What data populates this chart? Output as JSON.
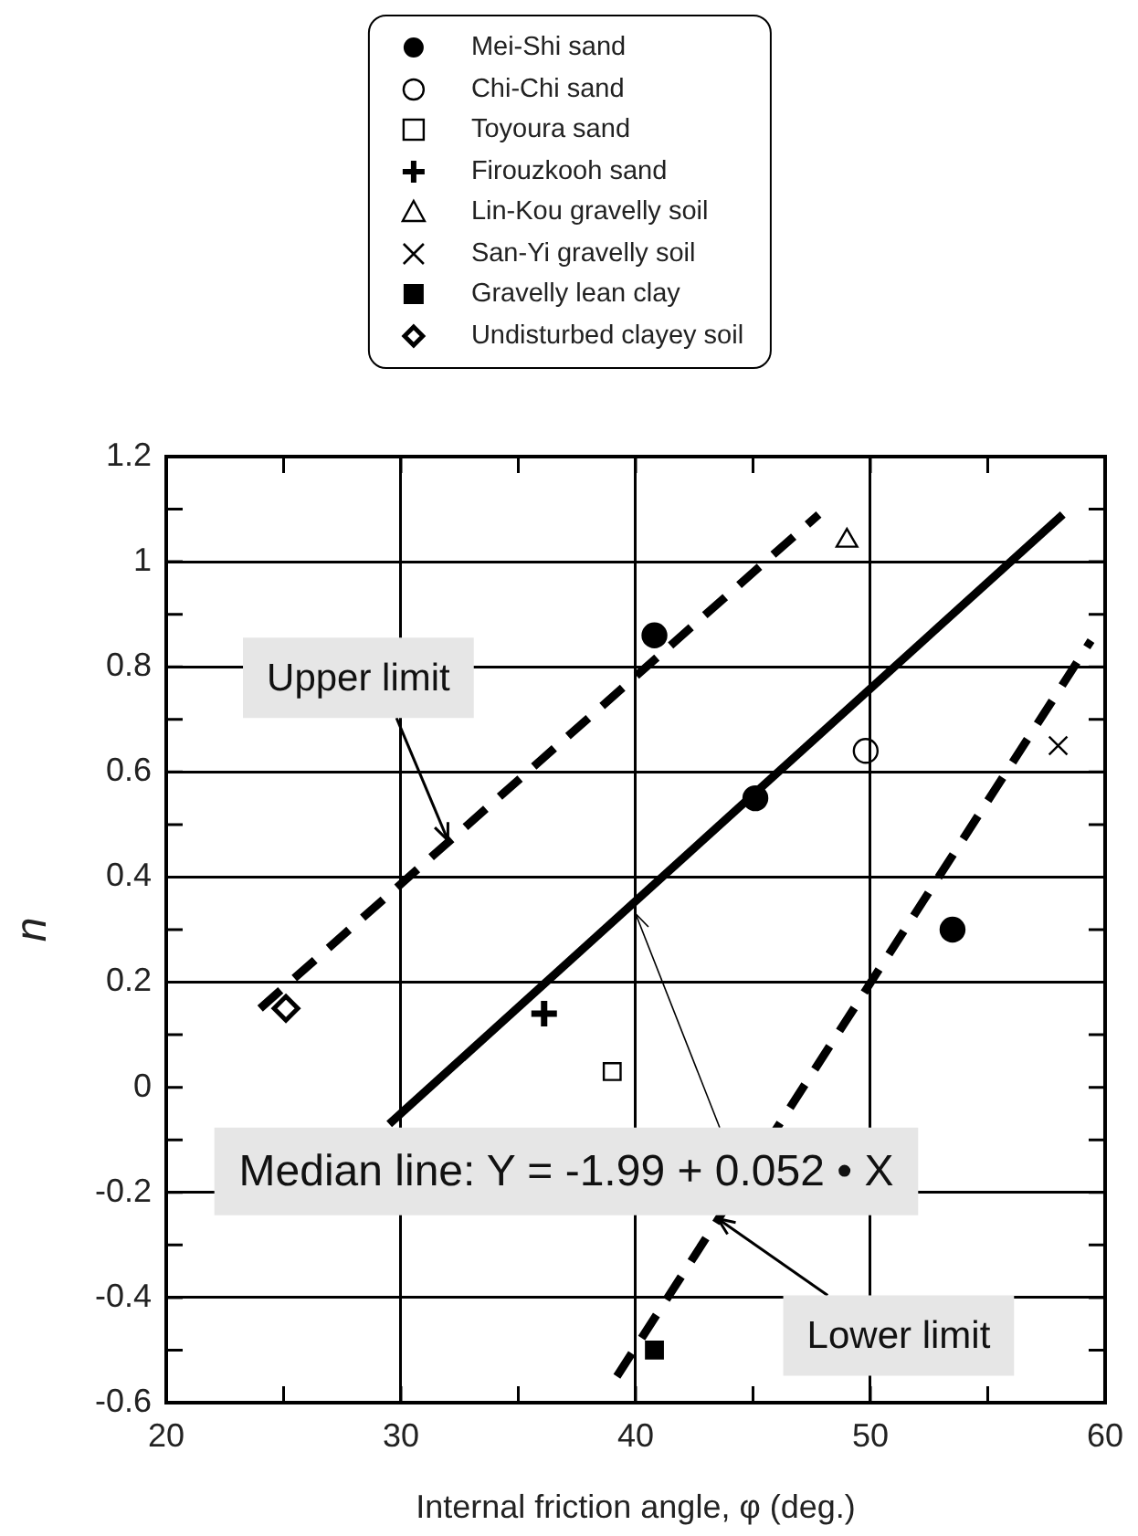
{
  "chart_data": {
    "type": "scatter",
    "xlabel": "Internal friction angle, φ (deg.)",
    "ylabel": "n",
    "xlim": [
      20,
      60
    ],
    "xticks": [
      20,
      {
        "value": 25,
        "label": null
      },
      30,
      {
        "value": 35,
        "label": null
      },
      40,
      {
        "value": 45,
        "label": null
      },
      50,
      {
        "value": 55,
        "label": null
      },
      60
    ],
    "ylim": [
      -0.6,
      1.2
    ],
    "yticks": [
      -0.6,
      {
        "value": -0.5,
        "label": null
      },
      -0.4,
      {
        "value": -0.3,
        "label": null
      },
      -0.2,
      {
        "value": -0.1,
        "label": null
      },
      0,
      {
        "value": 0.1,
        "label": null
      },
      0.2,
      {
        "value": 0.3,
        "label": null
      },
      0.4,
      {
        "value": 0.5,
        "label": null
      },
      0.6,
      {
        "value": 0.7,
        "label": null
      },
      0.8,
      {
        "value": 0.9,
        "label": null
      },
      1,
      {
        "value": 1.1,
        "label": null
      },
      1.2
    ],
    "grid": true,
    "legend": "top",
    "series": [
      {
        "name": "Mei-Shi sand",
        "color": "#000000",
        "marker": "circle",
        "x": [
          40.8,
          45.1,
          53.5
        ],
        "values": [
          0.86,
          0.55,
          0.3
        ]
      },
      {
        "name": "Chi-Chi sand",
        "color": "#000000",
        "marker": "circle-open",
        "x": [
          49.8
        ],
        "values": [
          0.64
        ]
      },
      {
        "name": "Toyoura sand",
        "color": "#000000",
        "marker": "square-open",
        "x": [
          39.0
        ],
        "values": [
          0.03
        ]
      },
      {
        "name": "Firouzkooh sand",
        "color": "#000000",
        "marker": "plus",
        "x": [
          36.1
        ],
        "values": [
          0.14
        ]
      },
      {
        "name": "Lin-Kou gravelly soil",
        "color": "#000000",
        "marker": "triangle-open",
        "x": [
          49.0
        ],
        "values": [
          1.04
        ]
      },
      {
        "name": "San-Yi gravelly soil",
        "color": "#000000",
        "marker": "cross",
        "x": [
          58.0
        ],
        "values": [
          0.65
        ]
      },
      {
        "name": "Gravelly lean clay",
        "color": "#000000",
        "marker": "square",
        "x": [
          40.8
        ],
        "values": [
          -0.5
        ]
      },
      {
        "name": "Undisturbed clayey soil",
        "color": "#000000",
        "marker": "diamond-open",
        "x": [
          25.1
        ],
        "values": [
          0.15
        ]
      },
      {
        "type": "line",
        "color": "#000000",
        "marker": "none",
        "line_style": "dashed",
        "x": [
          24.0,
          47.8
        ],
        "values": [
          0.15,
          1.09
        ]
      },
      {
        "type": "line",
        "color": "#000000",
        "marker": "none",
        "line_style": "solid",
        "x": [
          29.5,
          58.2
        ],
        "values": [
          -0.07,
          1.09
        ]
      },
      {
        "type": "line",
        "color": "#000000",
        "marker": "none",
        "line_style": "dashed",
        "x": [
          39.2,
          59.4
        ],
        "values": [
          -0.55,
          0.85
        ]
      }
    ],
    "annotations": [
      {
        "text": "Upper limit",
        "x": 32,
        "y": 0.47
      },
      {
        "text": "Median line: Y = -1.99 + 0.052 • X",
        "x": 40,
        "y": 0.33
      },
      {
        "text": "Lower limit",
        "x": 43.5,
        "y": -0.25
      }
    ]
  }
}
